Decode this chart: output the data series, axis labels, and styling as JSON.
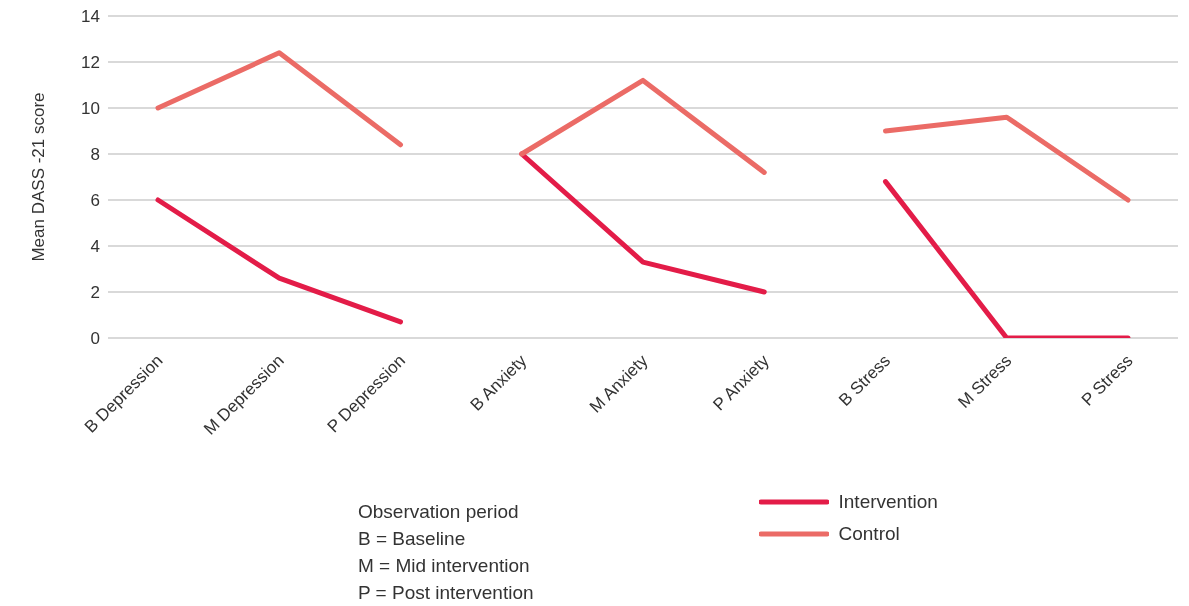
{
  "chart_data": {
    "type": "line",
    "ylabel": "Mean DASS  -21 score",
    "categories": [
      "B Depression",
      "M Depression",
      "P Depression",
      "B Anxiety",
      "M Anxiety",
      "P Anxiety",
      "B Stress",
      "M Stress",
      "P Stress"
    ],
    "series": [
      {
        "name": "Intervention",
        "color": "#e31c48",
        "values": [
          6.0,
          2.6,
          0.7,
          null,
          null,
          null,
          null,
          null,
          null
        ]
      },
      {
        "color": "#e31c48",
        "values": [
          null,
          null,
          null,
          8.0,
          3.3,
          2.0,
          null,
          null,
          null
        ]
      },
      {
        "color": "#e31c48",
        "values": [
          null,
          null,
          null,
          null,
          null,
          null,
          6.8,
          0,
          0
        ]
      },
      {
        "name": "Control",
        "color": "#eb6b66",
        "values": [
          10.0,
          12.4,
          8.4,
          null,
          null,
          null,
          null,
          null,
          null
        ]
      },
      {
        "color": "#eb6b66",
        "values": [
          null,
          null,
          null,
          8.0,
          11.2,
          7.2,
          null,
          null,
          null
        ]
      },
      {
        "color": "#eb6b66",
        "values": [
          null,
          null,
          null,
          null,
          null,
          null,
          9.0,
          9.6,
          6.0
        ]
      }
    ],
    "ylim": [
      0,
      14
    ],
    "yticks": [
      0,
      2,
      4,
      6,
      8,
      10,
      12,
      14
    ],
    "grid": "y",
    "legend": "bottom",
    "marker": "none",
    "line_style": "solid",
    "annotations": [
      "Observation period",
      "B = Baseline",
      "M = Mid intervention",
      "P = Post intervention"
    ]
  }
}
